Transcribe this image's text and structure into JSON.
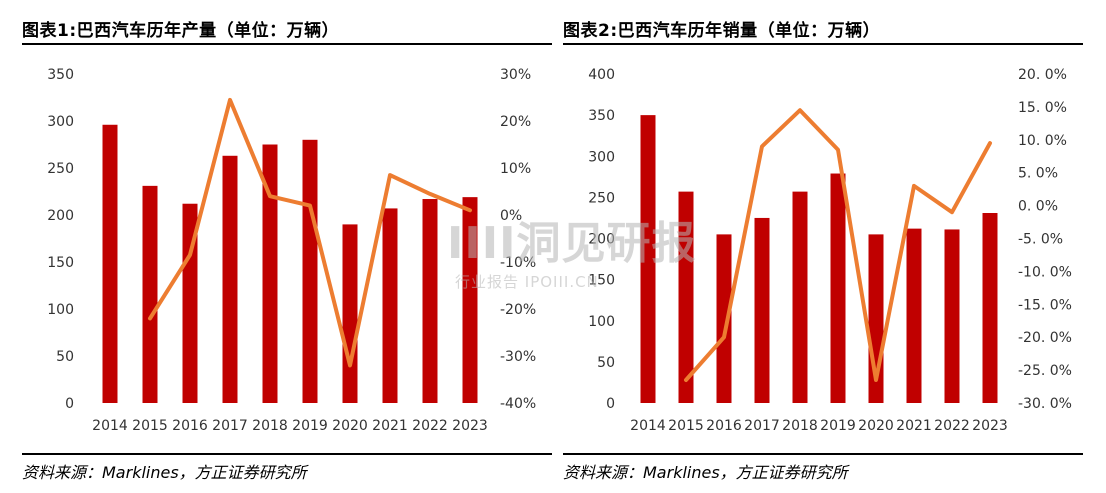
{
  "watermark": {
    "main": "IIII洞见研报",
    "sub": "行业报告 IPOIII.CN"
  },
  "chart_data": [
    {
      "type": "bar+line",
      "title": "图表1:巴西汽车历年产量（单位：万辆）",
      "source": "资料来源：Marklines，方正证券研究所",
      "categories": [
        "2014",
        "2015",
        "2016",
        "2017",
        "2018",
        "2019",
        "2020",
        "2021",
        "2022",
        "2023"
      ],
      "series": [
        {
          "type": "bar",
          "axis": "left",
          "color": "#C00000",
          "values": [
            296,
            231,
            212,
            263,
            275,
            280,
            190,
            207,
            217,
            219
          ]
        },
        {
          "type": "line",
          "axis": "right",
          "color": "#ED7D31",
          "values": [
            null,
            -22.0,
            -8.5,
            24.5,
            4.0,
            2.0,
            -32.0,
            8.5,
            4.5,
            1.0
          ]
        }
      ],
      "y_left": {
        "min": 0,
        "max": 350,
        "step": 50,
        "ticks": [
          "0",
          "50",
          "100",
          "150",
          "200",
          "250",
          "300",
          "350"
        ]
      },
      "y_right": {
        "min": -40,
        "max": 30,
        "step": 10,
        "ticks": [
          "-40%",
          "-30%",
          "-20%",
          "-10%",
          "0%",
          "10%",
          "20%",
          "30%"
        ]
      },
      "grid": false
    },
    {
      "type": "bar+line",
      "title": "图表2:巴西汽车历年销量（单位：万辆）",
      "source": "资料来源：Marklines，方正证券研究所",
      "categories": [
        "2014",
        "2015",
        "2016",
        "2017",
        "2018",
        "2019",
        "2020",
        "2021",
        "2022",
        "2023"
      ],
      "series": [
        {
          "type": "bar",
          "axis": "left",
          "color": "#C00000",
          "values": [
            350,
            257,
            205,
            225,
            257,
            279,
            205,
            212,
            211,
            231
          ]
        },
        {
          "type": "line",
          "axis": "right",
          "color": "#ED7D31",
          "values": [
            null,
            -26.5,
            -20.0,
            9.0,
            14.5,
            8.5,
            -26.5,
            3.0,
            -1.0,
            9.5
          ]
        }
      ],
      "y_left": {
        "min": 0,
        "max": 400,
        "step": 50,
        "ticks": [
          "0",
          "50",
          "100",
          "150",
          "200",
          "250",
          "300",
          "350",
          "400"
        ]
      },
      "y_right": {
        "min": -30,
        "max": 20,
        "step": 5,
        "ticks": [
          "-30. 0%",
          "-25. 0%",
          "-20. 0%",
          "-15. 0%",
          "-10. 0%",
          "-5. 0%",
          "0. 0%",
          "5. 0%",
          "10. 0%",
          "15. 0%",
          "20. 0%"
        ]
      },
      "grid": false
    }
  ]
}
